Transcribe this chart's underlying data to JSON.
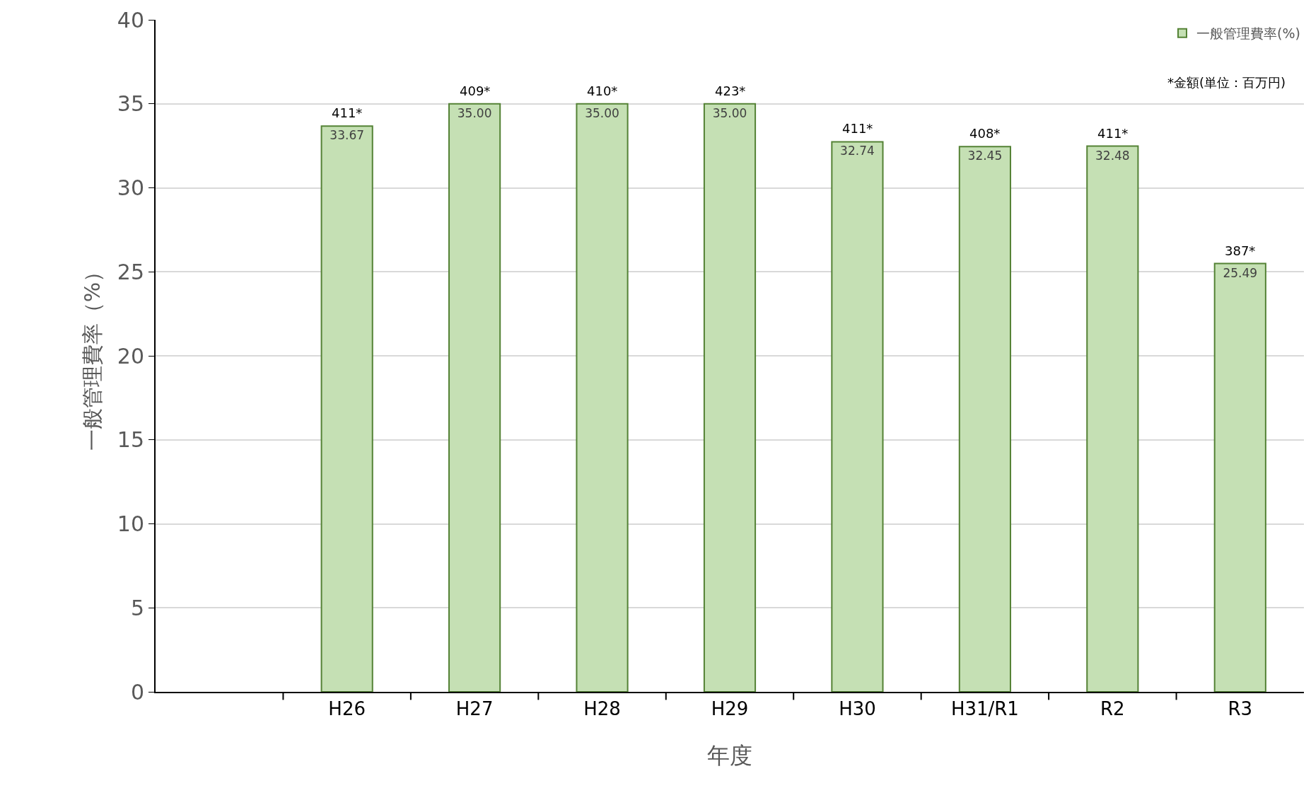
{
  "chart_data": {
    "type": "bar",
    "xlabel": "年度",
    "ylabel": "一般管理費率（%）",
    "categories": [
      null,
      "H26",
      "H27",
      "H28",
      "H29",
      "H30",
      "H31/R1",
      "R2",
      "R3"
    ],
    "series": [
      {
        "name": "一般管理費率(%)",
        "color": "#c5e0b4",
        "values": [
          null,
          33.67,
          35.0,
          35.0,
          35.0,
          32.74,
          32.45,
          32.48,
          25.49
        ],
        "value_labels": [
          null,
          "33.67",
          "35.00",
          "35.00",
          "35.00",
          "32.74",
          "32.45",
          "32.48",
          "25.49"
        ]
      }
    ],
    "ylim": [
      0,
      40
    ],
    "yticks": [
      0,
      5,
      10,
      15,
      20,
      25,
      30,
      35,
      40
    ],
    "grid": "y",
    "legend": "top right",
    "annotations": [
      {
        "text": "411*",
        "x": "H26",
        "y": 33.67
      },
      {
        "text": "409*",
        "x": "H27",
        "y": 35.0
      },
      {
        "text": "410*",
        "x": "H28",
        "y": 35.0
      },
      {
        "text": "423*",
        "x": "H29",
        "y": 35.0
      },
      {
        "text": "411*",
        "x": "H30",
        "y": 32.74
      },
      {
        "text": "408*",
        "x": "H31/R1",
        "y": 32.45
      },
      {
        "text": "411*",
        "x": "R2",
        "y": 32.48
      },
      {
        "text": "387*",
        "x": "R3",
        "y": 25.49
      },
      "*金額(単位：百万円)"
    ]
  }
}
